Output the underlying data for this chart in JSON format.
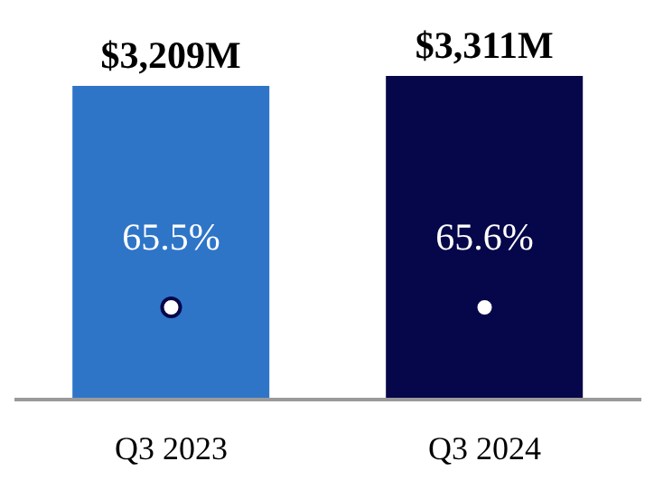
{
  "chart_data": {
    "type": "bar",
    "categories": [
      "Q3 2023",
      "Q3 2024"
    ],
    "series": [
      {
        "values": [
          3209,
          3311
        ],
        "colors": [
          "#2e75c8",
          "#06064a"
        ],
        "value_labels": [
          "$3,209M",
          "$3,311M"
        ]
      }
    ],
    "annotations": [
      "65.5%",
      "65.6%"
    ]
  }
}
